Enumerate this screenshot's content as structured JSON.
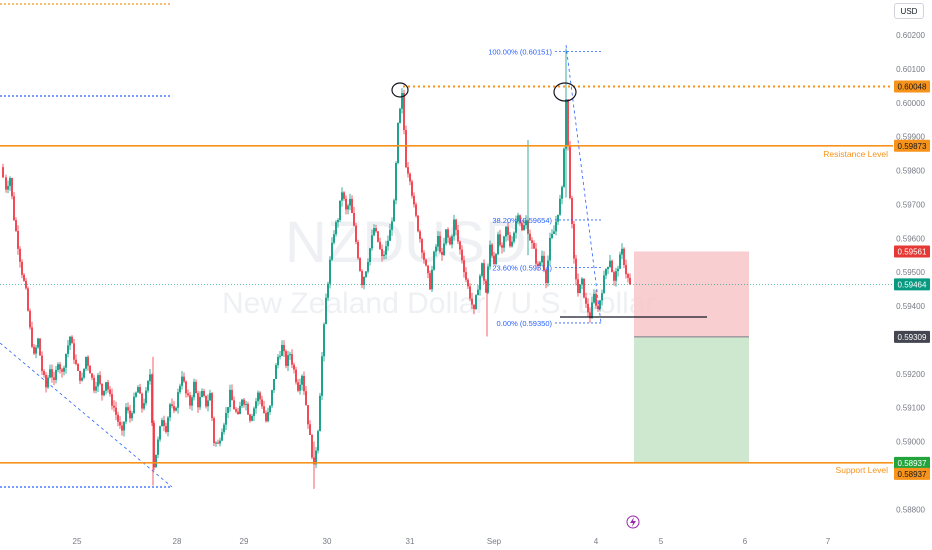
{
  "currency_button": "USD",
  "watermark": {
    "symbol": "NZDUSD",
    "name": "New Zealand Dollar / U.S. Dollar"
  },
  "price_tags": [
    {
      "label": "0.60048",
      "price": 0.60048,
      "bg": "#f7931a",
      "fg": "#131722"
    },
    {
      "label": "0.59873",
      "price": 0.59873,
      "bg": "#f7931a",
      "fg": "#131722"
    },
    {
      "label": "0.59561",
      "price": 0.59561,
      "bg": "#e53935",
      "fg": "#ffffff"
    },
    {
      "label": "0.59464",
      "price": 0.59464,
      "bg": "#089981",
      "fg": "#ffffff"
    },
    {
      "label": "0.59309",
      "price": 0.59309,
      "bg": "#434651",
      "fg": "#ffffff"
    },
    {
      "label": "0.58937",
      "price": 0.58937,
      "bg": "#22a33b",
      "fg": "#ffffff"
    },
    {
      "label": "0.58937",
      "price": 0.58902,
      "bg": "#f7931a",
      "fg": "#131722"
    }
  ],
  "levels": {
    "resistance_label": "Resistance Level",
    "support_label": "Support Level"
  },
  "fib_labels": {
    "f100": "100.00% (0.60151)",
    "f382": "38.20% (0.59654)",
    "f236": "23.60% (0.59514)",
    "f0": "0.00% (0.59350)"
  },
  "colors": {
    "up": "#089981",
    "down": "#f23645",
    "level": "#f7931a",
    "fib": "#2962ff",
    "stop_zone": "#f8c5c8",
    "target_zone": "#c8e6c9"
  },
  "chart_data": {
    "type": "candlestick",
    "symbol": "NZDUSD",
    "y_ticks": [
      "0.60200",
      "0.60100",
      "0.60000",
      "0.59900",
      "0.59800",
      "0.59700",
      "0.59600",
      "0.59500",
      "0.59400",
      "0.59200",
      "0.59100",
      "0.59000",
      "0.58800"
    ],
    "y_tick_values": [
      0.602,
      0.601,
      0.6,
      0.599,
      0.598,
      0.597,
      0.596,
      0.595,
      0.594,
      0.592,
      0.591,
      0.59,
      0.588
    ],
    "ylim": [
      0.5874,
      0.6029
    ],
    "x_ticks": [
      "25",
      "28",
      "29",
      "30",
      "31",
      "Sep",
      "4",
      "5",
      "6",
      "7"
    ],
    "x_tick_dates": [
      25,
      28,
      29,
      30,
      31,
      32,
      35,
      36,
      37,
      38
    ],
    "resistance": 0.59873,
    "support": 0.58937,
    "double_top_level": 0.60048,
    "fib": {
      "high": 0.60151,
      "r382": 0.59654,
      "r236": 0.59514,
      "low": 0.5935
    },
    "trade": {
      "entry": 0.59309,
      "stop": 0.59561,
      "target": 0.58937,
      "direction": "short"
    },
    "current_price": 0.59464,
    "closes_path": [
      [
        0,
        0.5981
      ],
      [
        6,
        0.5975
      ],
      [
        10,
        0.5978
      ],
      [
        14,
        0.5966
      ],
      [
        18,
        0.5958
      ],
      [
        22,
        0.595
      ],
      [
        26,
        0.5944
      ],
      [
        30,
        0.5933
      ],
      [
        34,
        0.5925
      ],
      [
        38,
        0.593
      ],
      [
        42,
        0.5921
      ],
      [
        46,
        0.5916
      ],
      [
        50,
        0.5922
      ],
      [
        54,
        0.5917
      ],
      [
        58,
        0.5924
      ],
      [
        62,
        0.592
      ],
      [
        66,
        0.5926
      ],
      [
        70,
        0.5931
      ],
      [
        74,
        0.5925
      ],
      [
        78,
        0.592
      ],
      [
        82,
        0.5918
      ],
      [
        86,
        0.5925
      ],
      [
        90,
        0.5921
      ],
      [
        94,
        0.5916
      ],
      [
        98,
        0.5919
      ],
      [
        102,
        0.5914
      ],
      [
        106,
        0.5918
      ],
      [
        110,
        0.5913
      ],
      [
        114,
        0.591
      ],
      [
        118,
        0.5906
      ],
      [
        122,
        0.5902
      ],
      [
        126,
        0.591
      ],
      [
        130,
        0.5907
      ],
      [
        134,
        0.5912
      ],
      [
        138,
        0.5916
      ],
      [
        142,
        0.591
      ],
      [
        146,
        0.5914
      ],
      [
        150,
        0.592
      ],
      [
        154,
        0.5893
      ],
      [
        158,
        0.59
      ],
      [
        162,
        0.5907
      ],
      [
        166,
        0.5904
      ],
      [
        170,
        0.5911
      ],
      [
        174,
        0.5908
      ],
      [
        178,
        0.5914
      ],
      [
        182,
        0.592
      ],
      [
        186,
        0.5914
      ],
      [
        190,
        0.5911
      ],
      [
        194,
        0.5917
      ],
      [
        198,
        0.5911
      ],
      [
        202,
        0.5914
      ],
      [
        206,
        0.5911
      ],
      [
        210,
        0.5914
      ],
      [
        214,
        0.59
      ],
      [
        218,
        0.5899
      ],
      [
        222,
        0.5904
      ],
      [
        226,
        0.5908
      ],
      [
        230,
        0.5914
      ],
      [
        234,
        0.591
      ],
      [
        238,
        0.5907
      ],
      [
        242,
        0.5913
      ],
      [
        246,
        0.5911
      ],
      [
        250,
        0.5907
      ],
      [
        254,
        0.591
      ],
      [
        258,
        0.5914
      ],
      [
        262,
        0.5911
      ],
      [
        266,
        0.5906
      ],
      [
        270,
        0.591
      ],
      [
        274,
        0.5919
      ],
      [
        278,
        0.5925
      ],
      [
        282,
        0.5928
      ],
      [
        286,
        0.5923
      ],
      [
        290,
        0.5926
      ],
      [
        294,
        0.5921
      ],
      [
        298,
        0.5916
      ],
      [
        302,
        0.592
      ],
      [
        306,
        0.5911
      ],
      [
        310,
        0.5901
      ],
      [
        314,
        0.5892
      ],
      [
        318,
        0.5904
      ],
      [
        322,
        0.5925
      ],
      [
        326,
        0.5942
      ],
      [
        330,
        0.5953
      ],
      [
        334,
        0.5962
      ],
      [
        338,
        0.5966
      ],
      [
        342,
        0.5974
      ],
      [
        346,
        0.5968
      ],
      [
        350,
        0.5971
      ],
      [
        354,
        0.5963
      ],
      [
        358,
        0.5955
      ],
      [
        362,
        0.5947
      ],
      [
        366,
        0.5951
      ],
      [
        370,
        0.5957
      ],
      [
        374,
        0.5963
      ],
      [
        378,
        0.5959
      ],
      [
        382,
        0.5954
      ],
      [
        386,
        0.5957
      ],
      [
        390,
        0.5962
      ],
      [
        394,
        0.597
      ],
      [
        398,
        0.5993
      ],
      [
        402,
        0.6002
      ],
      [
        406,
        0.5982
      ],
      [
        410,
        0.5978
      ],
      [
        414,
        0.5969
      ],
      [
        418,
        0.5963
      ],
      [
        422,
        0.5957
      ],
      [
        426,
        0.5951
      ],
      [
        430,
        0.5946
      ],
      [
        434,
        0.5955
      ],
      [
        438,
        0.596
      ],
      [
        442,
        0.5954
      ],
      [
        446,
        0.5962
      ],
      [
        450,
        0.5958
      ],
      [
        454,
        0.5965
      ],
      [
        458,
        0.5959
      ],
      [
        462,
        0.5954
      ],
      [
        466,
        0.5948
      ],
      [
        470,
        0.5943
      ],
      [
        474,
        0.5938
      ],
      [
        478,
        0.5946
      ],
      [
        482,
        0.5952
      ],
      [
        486,
        0.5944
      ],
      [
        490,
        0.5958
      ],
      [
        494,
        0.5953
      ],
      [
        498,
        0.596
      ],
      [
        502,
        0.5956
      ],
      [
        506,
        0.5963
      ],
      [
        510,
        0.5958
      ],
      [
        514,
        0.5962
      ],
      [
        518,
        0.5968
      ],
      [
        522,
        0.5962
      ],
      [
        526,
        0.5965
      ],
      [
        530,
        0.596
      ],
      [
        534,
        0.5956
      ],
      [
        538,
        0.5951
      ],
      [
        542,
        0.5955
      ],
      [
        546,
        0.5948
      ],
      [
        550,
        0.5959
      ],
      [
        554,
        0.5962
      ],
      [
        558,
        0.5968
      ],
      [
        562,
        0.5974
      ],
      [
        566,
        0.6001
      ],
      [
        570,
        0.5973
      ],
      [
        574,
        0.5953
      ],
      [
        578,
        0.5944
      ],
      [
        582,
        0.5947
      ],
      [
        586,
        0.594
      ],
      [
        590,
        0.5937
      ],
      [
        594,
        0.5943
      ],
      [
        598,
        0.5939
      ],
      [
        602,
        0.5945
      ],
      [
        606,
        0.5951
      ],
      [
        610,
        0.5954
      ],
      [
        614,
        0.5947
      ],
      [
        618,
        0.5952
      ],
      [
        622,
        0.5956
      ],
      [
        626,
        0.595
      ],
      [
        630,
        0.5946
      ]
    ]
  }
}
